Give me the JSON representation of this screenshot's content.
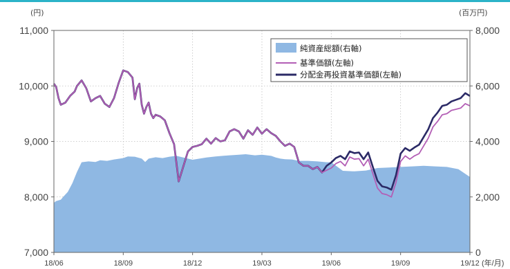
{
  "colors": {
    "topline": "#2bb3c8",
    "area": "#8fb8e3",
    "nav": "#b35eb5",
    "nav_reinvested": "#2b2a66",
    "grid": "#bfbfbf",
    "axis": "#666666"
  },
  "chart_data": {
    "type": "line",
    "left_unit": "(円)",
    "right_unit": "(百万円)",
    "x_unit": "(年/月)",
    "left_ylim": [
      7000,
      11000
    ],
    "right_ylim": [
      0,
      8000
    ],
    "left_ticks": [
      "11,000",
      "10,000",
      "9,000",
      "8,000",
      "7,000"
    ],
    "right_ticks": [
      "8,000",
      "6,000",
      "4,000",
      "2,000",
      "0"
    ],
    "x_ticks": [
      "18/06",
      "18/09",
      "18/12",
      "19/03",
      "19/06",
      "19/09",
      "19/12"
    ],
    "grid": true,
    "legend_position": "top-right",
    "legend": [
      {
        "label": "純資産総額(右軸)",
        "style": "area"
      },
      {
        "label": "基準価額(左軸)",
        "style": "line"
      },
      {
        "label": "分配金再投資基準価額(左軸)",
        "style": "line"
      }
    ],
    "series": [
      {
        "name": "純資産総額(右軸)",
        "axis": "right",
        "x": [
          0,
          0.1,
          0.3,
          0.4,
          0.6,
          0.8,
          1.0,
          1.2,
          1.5,
          1.8,
          2.0,
          2.3,
          2.6,
          3.0,
          3.2,
          3.5,
          3.8,
          3.95,
          4.1,
          4.4,
          4.7,
          5.0,
          5.3,
          5.6,
          6.0,
          6.3,
          6.6,
          7.0,
          7.3,
          7.6,
          8.0,
          8.3,
          8.7,
          9.0,
          9.4,
          9.6,
          9.8,
          10.0,
          10.3,
          10.6,
          11.0,
          11.4,
          11.8,
          12.0,
          12.5,
          13.0,
          13.5,
          14.0,
          14.5,
          15.0,
          15.5,
          16.0,
          16.5,
          17.0,
          17.5,
          18.0
        ],
        "values": [
          1790,
          1850,
          1900,
          2000,
          2180,
          2500,
          2900,
          3250,
          3280,
          3260,
          3320,
          3300,
          3350,
          3400,
          3460,
          3450,
          3380,
          3260,
          3380,
          3430,
          3400,
          3450,
          3480,
          3420,
          3340,
          3380,
          3420,
          3460,
          3480,
          3500,
          3520,
          3540,
          3500,
          3520,
          3480,
          3420,
          3380,
          3360,
          3350,
          3300,
          3300,
          3280,
          3250,
          3250,
          2940,
          2920,
          2950,
          3040,
          3060,
          3080,
          3100,
          3120,
          3100,
          3080,
          3000,
          2720
        ]
      },
      {
        "name": "基準価額(左軸)",
        "axis": "left",
        "x": [
          0,
          0.1,
          0.2,
          0.3,
          0.5,
          0.7,
          0.9,
          1.0,
          1.2,
          1.4,
          1.6,
          1.8,
          2.0,
          2.2,
          2.4,
          2.6,
          2.8,
          3.0,
          3.2,
          3.4,
          3.5,
          3.6,
          3.7,
          3.8,
          3.9,
          4.0,
          4.1,
          4.2,
          4.3,
          4.4,
          4.6,
          4.8,
          5.0,
          5.2,
          5.4,
          5.6,
          5.8,
          6.0,
          6.2,
          6.4,
          6.6,
          6.8,
          7.0,
          7.2,
          7.4,
          7.6,
          7.8,
          8.0,
          8.2,
          8.4,
          8.6,
          8.8,
          9.0,
          9.2,
          9.4,
          9.6,
          9.8,
          10.0,
          10.2,
          10.4,
          10.6,
          10.8,
          11.0,
          11.2,
          11.4,
          11.6,
          11.8,
          12.0,
          12.2,
          12.4,
          12.6,
          12.8,
          13.0,
          13.2,
          13.4,
          13.6,
          13.8,
          14.0,
          14.2,
          14.4,
          14.6,
          14.8,
          15.0,
          15.2,
          15.4,
          15.6,
          15.8,
          16.0,
          16.2,
          16.4,
          16.6,
          16.8,
          17.0,
          17.2,
          17.4,
          17.6,
          17.8,
          18.0
        ],
        "values": [
          10040,
          9980,
          9780,
          9660,
          9700,
          9820,
          9900,
          10000,
          10100,
          9960,
          9720,
          9780,
          9820,
          9680,
          9620,
          9780,
          10050,
          10280,
          10250,
          10150,
          9760,
          9960,
          10040,
          9660,
          9500,
          9620,
          9700,
          9500,
          9420,
          9480,
          9450,
          9380,
          9150,
          8950,
          8280,
          8550,
          8820,
          8900,
          8920,
          8950,
          9050,
          8960,
          9060,
          9000,
          9020,
          9180,
          9220,
          9180,
          9050,
          9200,
          9120,
          9250,
          9140,
          9220,
          9150,
          9100,
          9000,
          8920,
          8960,
          8900,
          8620,
          8560,
          8560,
          8500,
          8540,
          8440,
          8480,
          8520,
          8600,
          8640,
          8560,
          8720,
          8680,
          8690,
          8560,
          8680,
          8420,
          8160,
          8060,
          8040,
          8000,
          8260,
          8640,
          8740,
          8680,
          8740,
          8780,
          8920,
          9060,
          9260,
          9360,
          9480,
          9500,
          9560,
          9580,
          9600,
          9680,
          9640
        ]
      },
      {
        "name": "分配金再投資基準価額(左軸)",
        "axis": "left",
        "x": [
          0,
          0.1,
          0.2,
          0.3,
          0.5,
          0.7,
          0.9,
          1.0,
          1.2,
          1.4,
          1.6,
          1.8,
          2.0,
          2.2,
          2.4,
          2.6,
          2.8,
          3.0,
          3.2,
          3.4,
          3.5,
          3.6,
          3.7,
          3.8,
          3.9,
          4.0,
          4.1,
          4.2,
          4.3,
          4.4,
          4.6,
          4.8,
          5.0,
          5.2,
          5.4,
          5.6,
          5.8,
          6.0,
          6.2,
          6.4,
          6.6,
          6.8,
          7.0,
          7.2,
          7.4,
          7.6,
          7.8,
          8.0,
          8.2,
          8.4,
          8.6,
          8.8,
          9.0,
          9.2,
          9.4,
          9.6,
          9.8,
          10.0,
          10.2,
          10.4,
          10.6,
          10.8,
          11.0,
          11.2,
          11.4,
          11.6,
          11.8,
          12.0,
          12.2,
          12.4,
          12.6,
          12.8,
          13.0,
          13.2,
          13.4,
          13.6,
          13.8,
          14.0,
          14.2,
          14.4,
          14.6,
          14.8,
          15.0,
          15.2,
          15.4,
          15.6,
          15.8,
          16.0,
          16.2,
          16.4,
          16.6,
          16.8,
          17.0,
          17.2,
          17.4,
          17.6,
          17.8,
          18.0
        ],
        "values": [
          10040,
          9980,
          9780,
          9660,
          9700,
          9820,
          9900,
          10000,
          10100,
          9960,
          9720,
          9780,
          9820,
          9680,
          9620,
          9780,
          10050,
          10280,
          10250,
          10150,
          9760,
          9960,
          10040,
          9660,
          9500,
          9620,
          9700,
          9500,
          9420,
          9480,
          9450,
          9380,
          9150,
          8950,
          8280,
          8550,
          8820,
          8900,
          8920,
          8950,
          9050,
          8960,
          9060,
          9000,
          9020,
          9180,
          9220,
          9180,
          9050,
          9200,
          9120,
          9250,
          9140,
          9220,
          9150,
          9100,
          9000,
          8920,
          8960,
          8900,
          8620,
          8560,
          8560,
          8500,
          8540,
          8440,
          8560,
          8620,
          8700,
          8740,
          8680,
          8820,
          8790,
          8800,
          8680,
          8800,
          8540,
          8290,
          8190,
          8170,
          8130,
          8390,
          8780,
          8880,
          8830,
          8890,
          8940,
          9080,
          9220,
          9420,
          9520,
          9640,
          9660,
          9720,
          9750,
          9780,
          9870,
          9820
        ]
      }
    ]
  }
}
